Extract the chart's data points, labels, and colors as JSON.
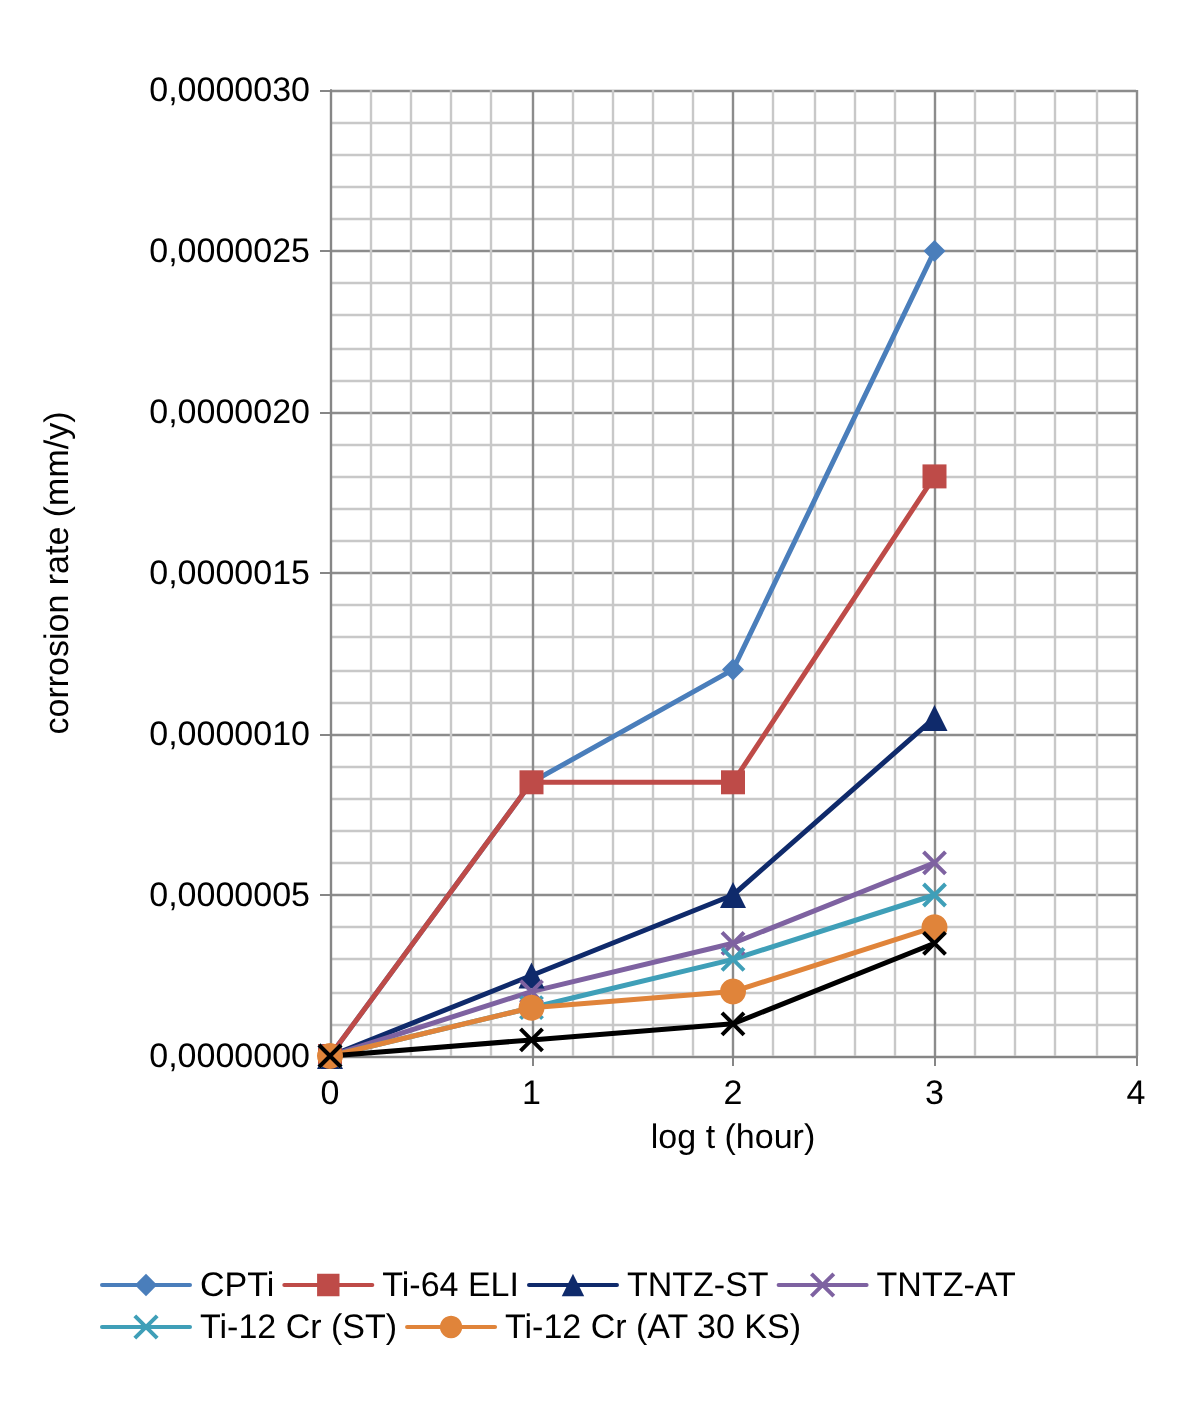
{
  "chart_data": {
    "type": "line",
    "xlabel": "log t (hour)",
    "ylabel": "corrosion rate (mm/y)",
    "x": [
      0,
      1,
      2,
      3
    ],
    "xlim": [
      0,
      4
    ],
    "xticks": [
      0,
      1,
      2,
      3,
      4
    ],
    "ylim": [
      0,
      3e-06
    ],
    "yticks": [
      {
        "value": 0,
        "label": "0,0000000"
      },
      {
        "value": 5e-07,
        "label": "0,0000005"
      },
      {
        "value": 1e-06,
        "label": "0,0000010"
      },
      {
        "value": 1.5e-06,
        "label": "0,0000015"
      },
      {
        "value": 2e-06,
        "label": "0,0000020"
      },
      {
        "value": 2.5e-06,
        "label": "0,0000025"
      },
      {
        "value": 3e-06,
        "label": "0,0000030"
      }
    ],
    "grid": true,
    "legend": "bottom",
    "line_style": "solid",
    "series": [
      {
        "name": "CPTi",
        "color": "#4a7ebb",
        "marker": "diamond",
        "values": [
          0,
          8.5e-07,
          1.2e-06,
          2.5e-06
        ]
      },
      {
        "name": "Ti-64 ELI",
        "color": "#be4b48",
        "marker": "square",
        "values": [
          0,
          8.5e-07,
          8.5e-07,
          1.8e-06
        ]
      },
      {
        "name": "TNTZ-ST",
        "color": "#0f2a6b",
        "marker": "triangle",
        "values": [
          0,
          2.5e-07,
          5e-07,
          1.05e-06
        ]
      },
      {
        "name": "TNTZ-AT",
        "color": "#7e62a1",
        "marker": "cross",
        "values": [
          0,
          2e-07,
          3.5e-07,
          6e-07
        ]
      },
      {
        "name": "Ti-12 Cr (ST)",
        "color": "#3f9fb8",
        "marker": "cross",
        "values": [
          0,
          1.5e-07,
          3e-07,
          5e-07
        ]
      },
      {
        "name": "Ti-12 Cr (AT 30 KS)",
        "color": "#e0843a",
        "marker": "circle",
        "values": [
          0,
          1.5e-07,
          2e-07,
          4e-07
        ]
      },
      {
        "color": "#000000",
        "marker": "cross",
        "values": [
          0,
          5e-08,
          1e-07,
          3.5e-07
        ]
      }
    ]
  }
}
